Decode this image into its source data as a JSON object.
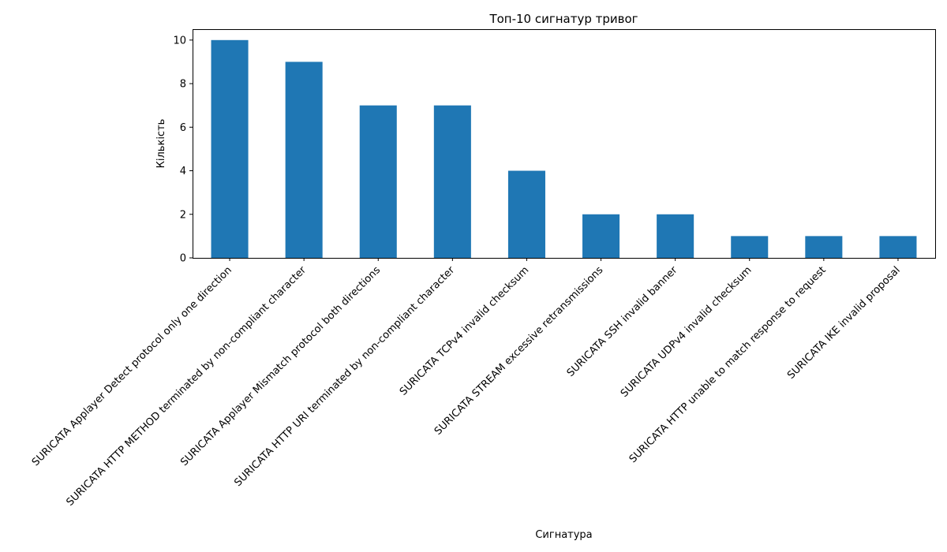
{
  "chart_data": {
    "type": "bar",
    "title": "Топ-10 сигнатур тривог",
    "xlabel": "Сигнатура",
    "ylabel": "Кількість",
    "categories": [
      "SURICATA Applayer Detect protocol only one direction",
      "SURICATA HTTP METHOD terminated by non-compliant character",
      "SURICATA Applayer Mismatch protocol both directions",
      "SURICATA HTTP URI terminated by non-compliant character",
      "SURICATA TCPv4 invalid checksum",
      "SURICATA STREAM excessive retransmissions",
      "SURICATA SSH invalid banner",
      "SURICATA UDPv4 invalid checksum",
      "SURICATA HTTP unable to match response to request",
      "SURICATA IKE invalid proposal"
    ],
    "values": [
      10,
      9,
      7,
      7,
      4,
      2,
      2,
      1,
      1,
      1
    ],
    "ylim": [
      0,
      10.5
    ],
    "yticks": [
      0,
      2,
      4,
      6,
      8,
      10
    ],
    "grid": false,
    "legend": "none",
    "bar_color": "#1f77b4"
  }
}
